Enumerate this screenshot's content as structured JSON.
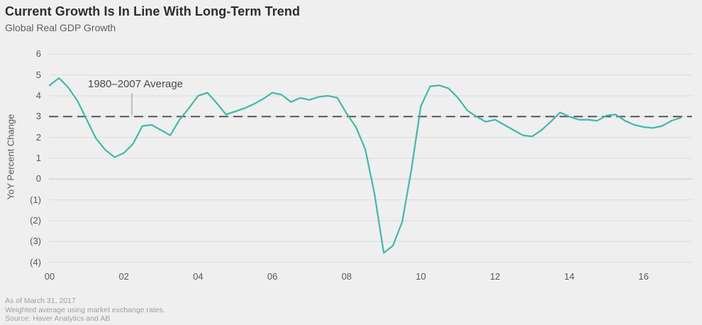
{
  "header": {
    "title": "Current Growth Is In Line With Long-Term Trend",
    "subtitle": "Global Real GDP Growth"
  },
  "annotation": {
    "label": "1980–2007 Average"
  },
  "footer": {
    "lines": [
      "As of March 31, 2017",
      "Weighted average using market exchange rates.",
      "Source: Haver Analytics and AB"
    ]
  },
  "colors": {
    "background": "#efefef",
    "series_line": "#44b9a9",
    "average_line": "#565656",
    "gridline": "#dddddd",
    "zero_gridline": "#c9c9c9",
    "leader_line": "#8c8c8c",
    "title_text": "#2d2d2d",
    "axis_text": "#585858",
    "footer_text": "#9e9e9e"
  },
  "chart_data": {
    "type": "line",
    "title": "Current Growth Is In Line With Long-Term Trend",
    "subtitle": "Global Real GDP Growth",
    "xlabel": "",
    "ylabel": "YoY Percent Change",
    "ylim": [
      -4,
      6
    ],
    "grid": "horizontal-only",
    "legend_position": "none",
    "x_unit": "quarterly, 2000Q1 through 2017Q1",
    "x_tick_labels": [
      "00",
      "02",
      "04",
      "06",
      "08",
      "10",
      "12",
      "14",
      "16"
    ],
    "y_ticks": [
      6,
      5,
      4,
      3,
      2,
      1,
      0,
      -1,
      -2,
      -3,
      -4
    ],
    "y_tick_labels": [
      "6",
      "5",
      "4",
      "3",
      "2",
      "1",
      "0",
      "(1)",
      "(2)",
      "(3)",
      "(4)"
    ],
    "average_line": {
      "label": "1980–2007 Average",
      "value": 3,
      "style": "dashed"
    },
    "series": [
      {
        "name": "Global Real GDP Growth (YoY %)",
        "color": "#44b9a9",
        "values": [
          4.5,
          4.85,
          4.4,
          3.75,
          2.85,
          1.95,
          1.4,
          1.05,
          1.25,
          1.7,
          2.55,
          2.6,
          2.35,
          2.1,
          2.85,
          3.4,
          4.0,
          4.15,
          3.65,
          3.1,
          3.25,
          3.4,
          3.6,
          3.85,
          4.15,
          4.05,
          3.7,
          3.9,
          3.8,
          3.95,
          4.0,
          3.9,
          3.15,
          2.5,
          1.45,
          -0.7,
          -3.55,
          -3.2,
          -2.05,
          0.5,
          3.5,
          4.45,
          4.5,
          4.35,
          3.9,
          3.3,
          3.0,
          2.75,
          2.85,
          2.6,
          2.35,
          2.1,
          2.05,
          2.35,
          2.75,
          3.2,
          3.0,
          2.85,
          2.85,
          2.8,
          3.05,
          3.1,
          2.8,
          2.6,
          2.5,
          2.45,
          2.55,
          2.8,
          2.95
        ]
      }
    ]
  }
}
